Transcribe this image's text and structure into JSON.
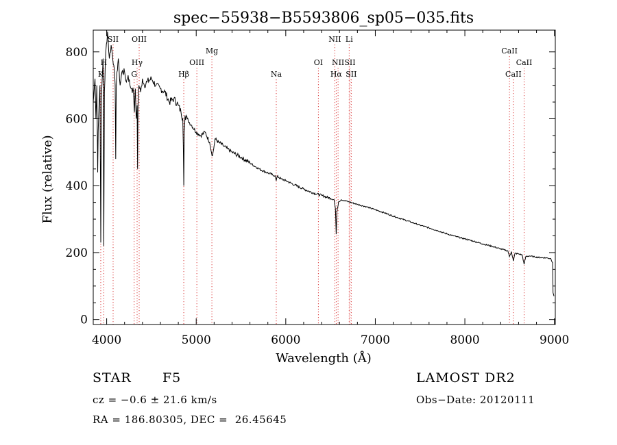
{
  "chart_data": {
    "type": "line",
    "title": "spec−55938−B5593806_sp05−035.fits",
    "xlabel": "Wavelength (Å)",
    "ylabel": "Flux (relative)",
    "xlim": [
      3850,
      9010
    ],
    "ylim": [
      -15,
      865
    ],
    "xticks": [
      4000,
      5000,
      6000,
      7000,
      8000,
      9000
    ],
    "yticks": [
      0,
      200,
      400,
      600,
      800
    ],
    "grid": false,
    "line_color": "#000000",
    "marker_color": "#d62020",
    "series": [
      {
        "name": "flux",
        "x": [
          3850,
          3870,
          3880,
          3890,
          3900,
          3905,
          3915,
          3925,
          3934,
          3940,
          3950,
          3960,
          3968,
          3975,
          3990,
          4010,
          4030,
          4050,
          4080,
          4095,
          4101,
          4107,
          4115,
          4130,
          4150,
          4170,
          4200,
          4220,
          4240,
          4260,
          4280,
          4300,
          4310,
          4320,
          4330,
          4340,
          4345,
          4350,
          4360,
          4380,
          4400,
          4420,
          4450,
          4500,
          4550,
          4600,
          4650,
          4700,
          4750,
          4800,
          4830,
          4850,
          4856,
          4861,
          4866,
          4875,
          4900,
          4920,
          4950,
          5000,
          5050,
          5100,
          5150,
          5170,
          5183,
          5195,
          5210,
          5250,
          5300,
          5350,
          5400,
          5500,
          5600,
          5700,
          5800,
          5880,
          5893,
          5905,
          5950,
          6000,
          6100,
          6200,
          6300,
          6400,
          6500,
          6540,
          6555,
          6563,
          6571,
          6590,
          6620,
          6700,
          6800,
          6900,
          7000,
          7100,
          7200,
          7300,
          7400,
          7500,
          7600,
          7700,
          7800,
          7900,
          8000,
          8100,
          8200,
          8300,
          8400,
          8480,
          8498,
          8520,
          8542,
          8560,
          8600,
          8640,
          8662,
          8680,
          8720,
          8780,
          8850,
          8920,
          8960,
          8980,
          8985,
          8990,
          8995
        ],
        "y": [
          650,
          720,
          600,
          700,
          440,
          560,
          640,
          700,
          230,
          650,
          720,
          780,
          220,
          680,
          800,
          860,
          780,
          820,
          760,
          700,
          480,
          700,
          740,
          780,
          700,
          740,
          740,
          710,
          730,
          700,
          690,
          680,
          620,
          690,
          600,
          640,
          450,
          640,
          700,
          680,
          720,
          700,
          710,
          720,
          700,
          690,
          680,
          650,
          660,
          640,
          620,
          600,
          520,
          400,
          560,
          610,
          600,
          590,
          580,
          560,
          550,
          560,
          530,
          500,
          490,
          510,
          540,
          530,
          520,
          510,
          500,
          485,
          468,
          450,
          438,
          430,
          415,
          428,
          420,
          415,
          402,
          390,
          379,
          371,
          362,
          358,
          330,
          255,
          320,
          352,
          358,
          352,
          344,
          337,
          328,
          319,
          309,
          300,
          291,
          282,
          274,
          265,
          256,
          248,
          241,
          234,
          226,
          219,
          211,
          205,
          188,
          203,
          175,
          198,
          196,
          193,
          165,
          188,
          190,
          187,
          185,
          184,
          182,
          170,
          80,
          75,
          70
        ]
      }
    ],
    "line_markers": [
      {
        "label": "K",
        "wavelength": 3934,
        "row": 3
      },
      {
        "label": "H",
        "wavelength": 3968,
        "row": 2
      },
      {
        "label": "SII",
        "wavelength": 4072,
        "row": 0
      },
      {
        "label": "G",
        "wavelength": 4307,
        "row": 3
      },
      {
        "label": "OIII",
        "wavelength": 4363,
        "row": 0
      },
      {
        "label": "Hγ",
        "wavelength": 4340,
        "row": 2
      },
      {
        "label": "Hβ",
        "wavelength": 4861,
        "row": 3
      },
      {
        "label": "OIII",
        "wavelength": 5007,
        "row": 2
      },
      {
        "label": "Mg",
        "wavelength": 5175,
        "row": 1
      },
      {
        "label": "Na",
        "wavelength": 5894,
        "row": 3
      },
      {
        "label": "OI",
        "wavelength": 6364,
        "row": 2
      },
      {
        "label": "NII",
        "wavelength": 6548,
        "row": 0
      },
      {
        "label": "Li",
        "wavelength": 6708,
        "row": 0
      },
      {
        "label": "NII",
        "wavelength": 6584,
        "row": 2
      },
      {
        "label": "SII",
        "wavelength": 6717,
        "row": 2
      },
      {
        "label": "Hα",
        "wavelength": 6563,
        "row": 3
      },
      {
        "label": "SII",
        "wavelength": 6731,
        "row": 3
      },
      {
        "label": "CaII",
        "wavelength": 8498,
        "row": 1
      },
      {
        "label": "CaII",
        "wavelength": 8662,
        "row": 2
      },
      {
        "label": "CaII",
        "wavelength": 8542,
        "row": 3
      }
    ]
  },
  "info": {
    "object_type": "STAR",
    "subclass": "F5",
    "redshift": "cz = −0.6 ± 21.6 km/s",
    "coordinates": "RA = 186.80305, DEC =  26.45645",
    "survey": "LAMOST DR2",
    "obs_date": "Obs−Date: 20120111"
  }
}
